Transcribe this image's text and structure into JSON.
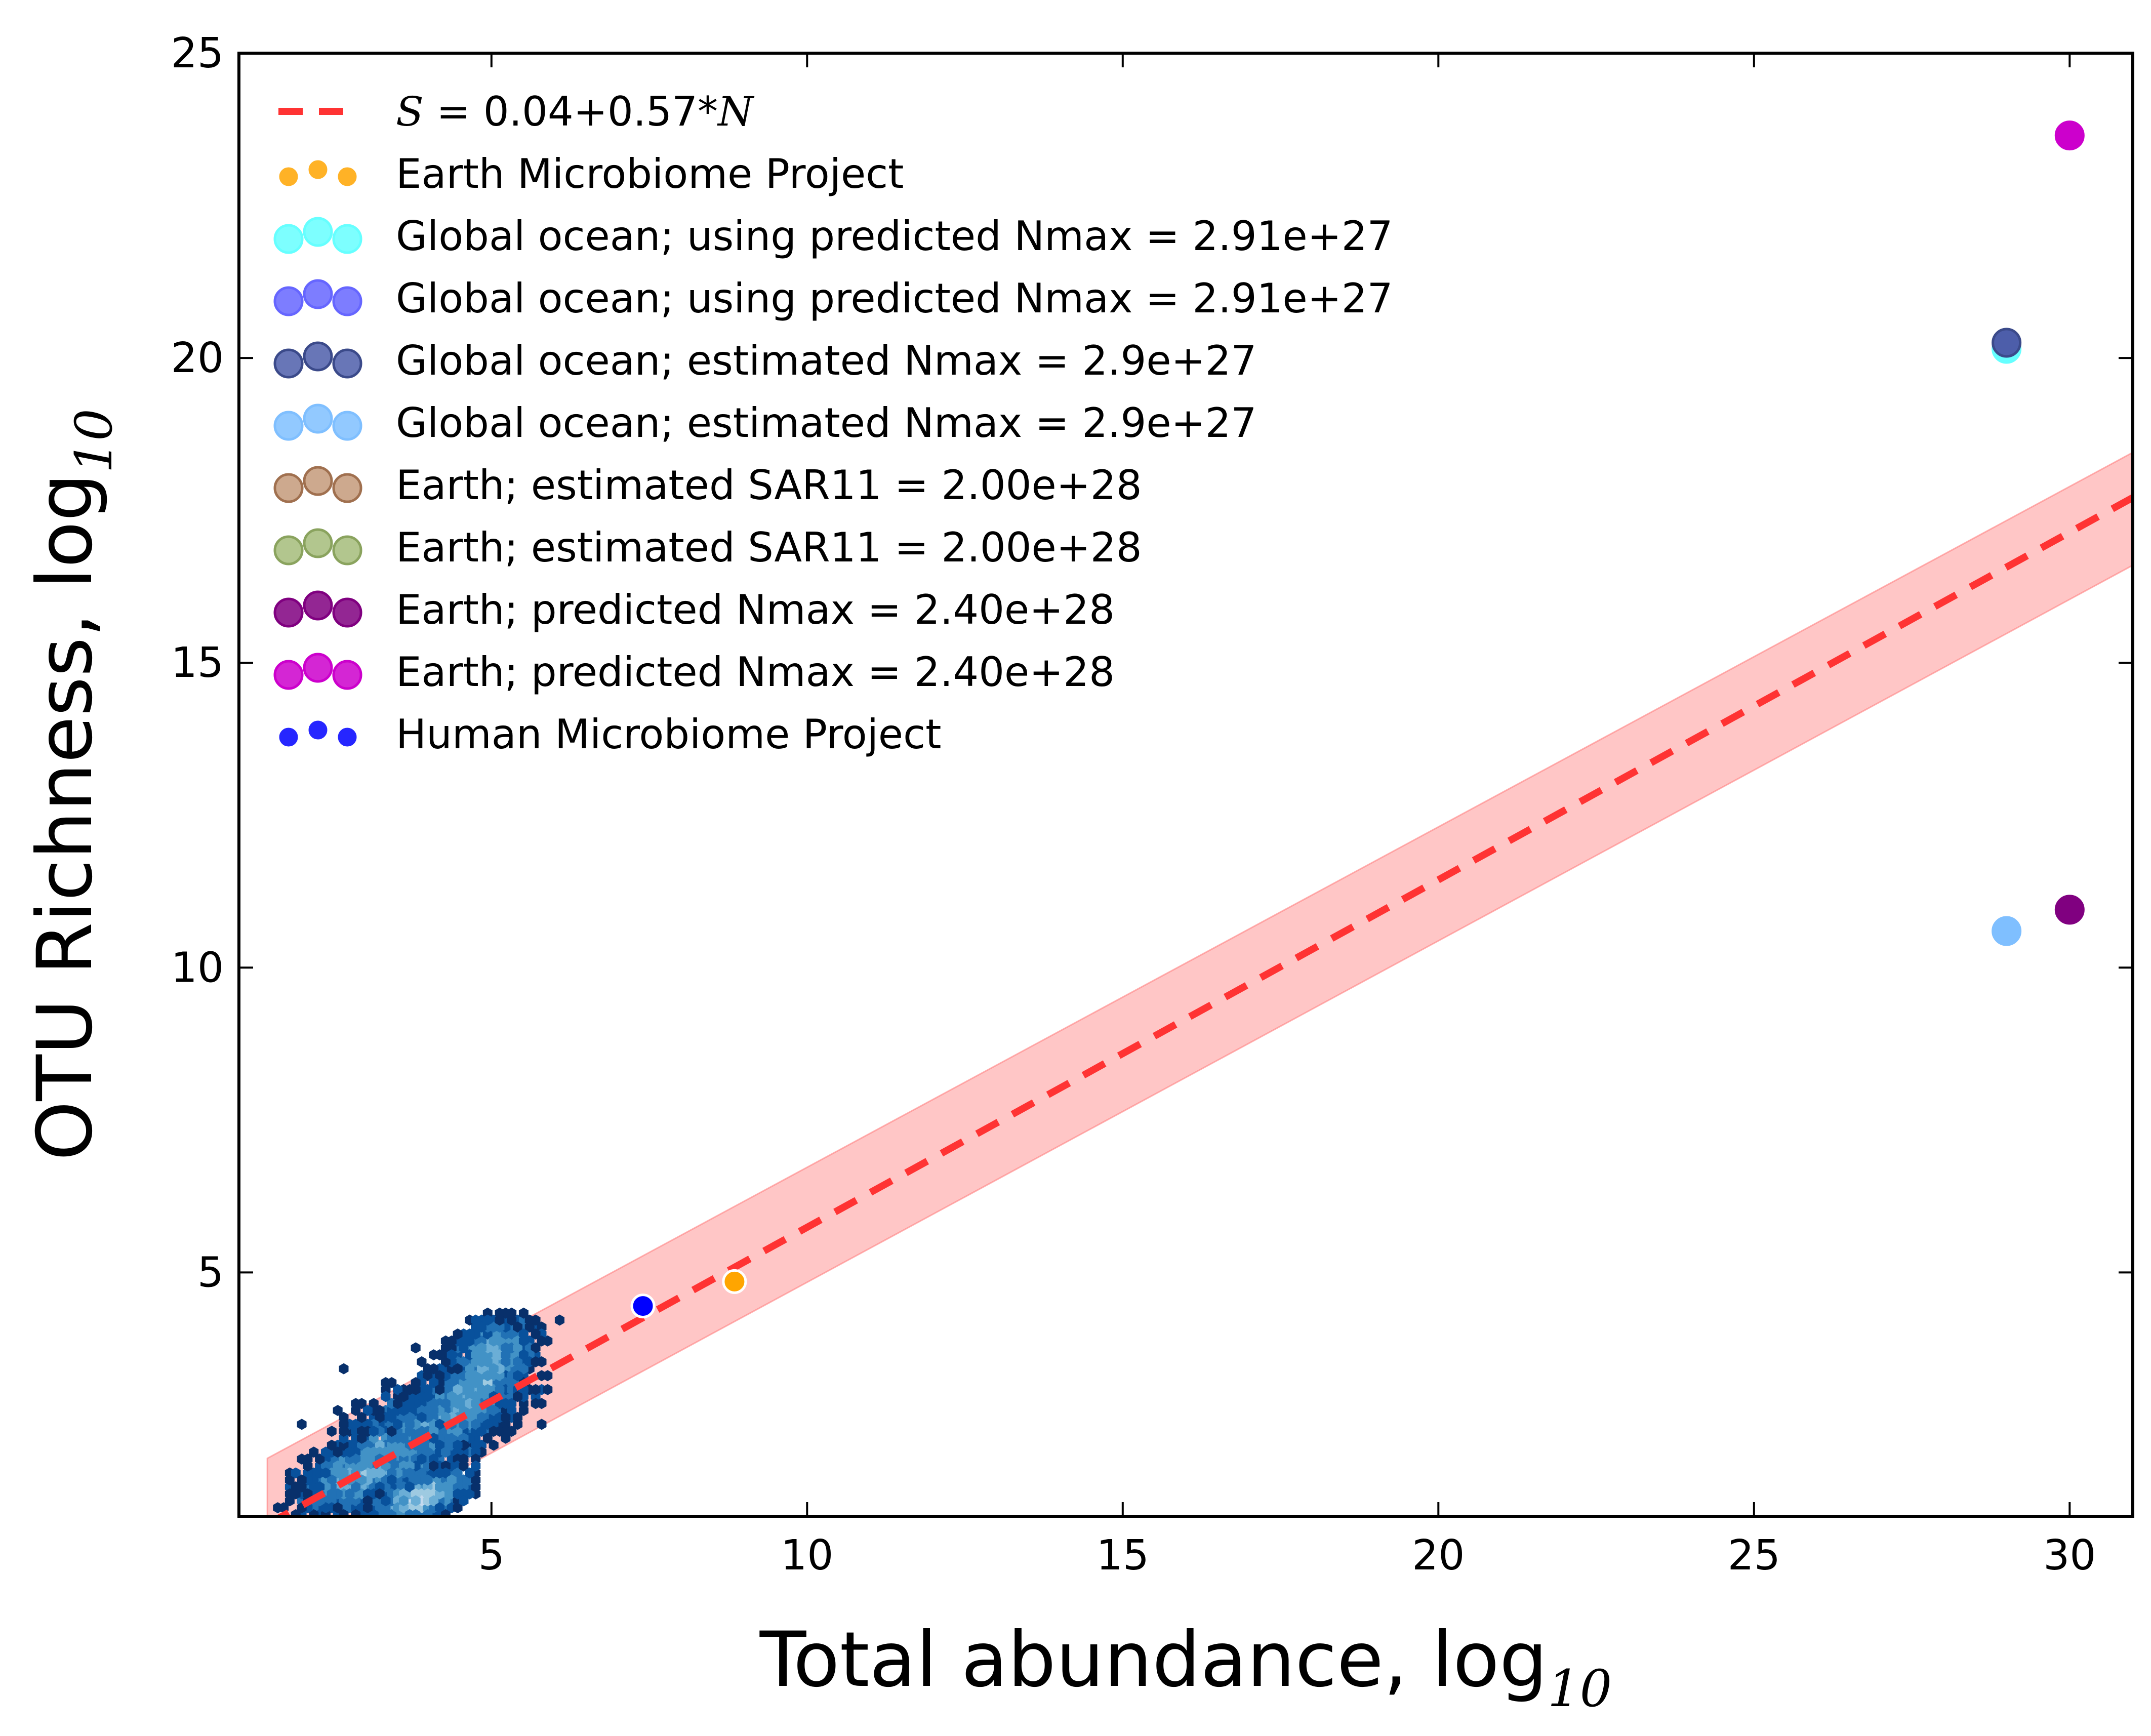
{
  "chart_data": {
    "type": "scatter",
    "xlabel": "Total abundance, log",
    "xlabel_sub": "10",
    "ylabel": "OTU Richness, log",
    "ylabel_sub": "10",
    "xlim": [
      1,
      31
    ],
    "ylim": [
      1,
      25
    ],
    "xticks": [
      5,
      10,
      15,
      20,
      25,
      30
    ],
    "yticks": [
      5,
      10,
      15,
      20,
      25
    ],
    "grid": false,
    "legend_position": "upper-left",
    "fit": {
      "label_var_s": "S",
      "label_expr": " = 0.04+0.57*",
      "label_var_n": "N",
      "intercept": 0.04,
      "slope": 0.57,
      "color": "#ff3333",
      "band_color": "#ffb3b3",
      "band_upper": [
        [
          1.45,
          1.95
        ],
        [
          31,
          18.45
        ]
      ],
      "band_lower": [
        [
          1.45,
          0.05
        ],
        [
          31,
          16.6
        ]
      ]
    },
    "series": [
      {
        "name": "Earth Microbiome Project",
        "color": "#ffa500",
        "edge": "#ffffff",
        "size": "small",
        "points": [
          [
            8.85,
            4.85
          ]
        ]
      },
      {
        "name": "Global ocean; using predicted Nmax = 2.91e+27",
        "color": "#66ffff",
        "edge": "#66ffff",
        "size": "large",
        "points": [
          [
            29.0,
            20.15
          ]
        ]
      },
      {
        "name": "Global ocean; using predicted Nmax = 2.91e+27",
        "color": "#6666ff",
        "edge": "#6666ff",
        "size": "large",
        "points": []
      },
      {
        "name": "Global ocean; estimated Nmax = 2.9e+27",
        "color": "#4d5eaa",
        "edge": "#3b4a8a",
        "size": "large",
        "points": [
          [
            29.0,
            20.25
          ]
        ]
      },
      {
        "name": "Global ocean; estimated Nmax = 2.9e+27",
        "color": "#7fbfff",
        "edge": "#7fbfff",
        "size": "large",
        "points": [
          [
            29.0,
            10.6
          ]
        ]
      },
      {
        "name": "Earth; estimated SAR11 = 2.00e+28",
        "color": "#c49a7a",
        "edge": "#a0704f",
        "size": "large",
        "points": []
      },
      {
        "name": "Earth; estimated SAR11 = 2.00e+28",
        "color": "#a4bc7a",
        "edge": "#8aa35e",
        "size": "large",
        "points": []
      },
      {
        "name": "Earth; predicted Nmax = 2.40e+28",
        "color": "#800080",
        "edge": "#800080",
        "size": "large",
        "points": [
          [
            30.0,
            10.95
          ]
        ]
      },
      {
        "name": "Earth; predicted Nmax = 2.40e+28",
        "color": "#cc00cc",
        "edge": "#cc00cc",
        "size": "large",
        "points": [
          [
            30.0,
            23.65
          ]
        ]
      },
      {
        "name": "Human Microbiome Project",
        "color": "#0000ff",
        "edge": "#ffffff",
        "size": "small",
        "points": [
          [
            7.4,
            4.45
          ]
        ]
      }
    ],
    "hexbin": {
      "colors": [
        "#08306b",
        "#08519c",
        "#2171b5",
        "#4292c6",
        "#6baed6",
        "#9ecae1",
        "#c6dbef"
      ],
      "clusters": [
        {
          "x": 5.0,
          "y": 3.6,
          "sx": 0.55,
          "sy": 0.55
        },
        {
          "x": 4.6,
          "y": 2.8,
          "sx": 0.7,
          "sy": 0.55
        },
        {
          "x": 3.6,
          "y": 2.2,
          "sx": 0.8,
          "sy": 0.7
        },
        {
          "x": 2.8,
          "y": 1.6,
          "sx": 0.7,
          "sy": 0.45
        },
        {
          "x": 3.9,
          "y": 1.3,
          "sx": 0.6,
          "sy": 0.25
        }
      ]
    }
  }
}
